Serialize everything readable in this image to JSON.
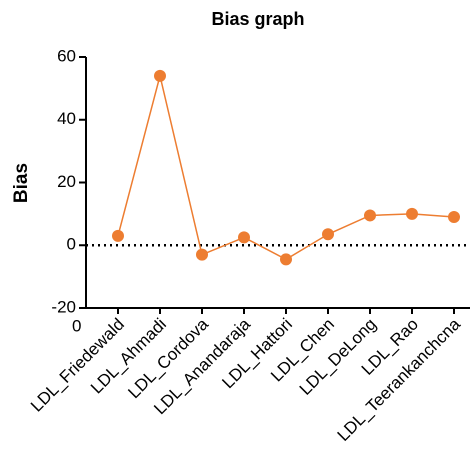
{
  "chart_data": {
    "type": "line",
    "title": "Bias graph",
    "y_label": "Bias",
    "categories": [
      "0",
      "LDL_Friedewald",
      "LDL_Ahmadi",
      "LDL_Cordova",
      "LDL_Anandaraja",
      "LDL_Hattori",
      "LDL_Chen",
      "LDL_DeLong",
      "LDL_Rao",
      "LDL_Teerankanchcna"
    ],
    "series": [
      {
        "name": "Bias",
        "color": "#ed7d31",
        "values": [
          null,
          3,
          54,
          -3,
          2.5,
          -4.5,
          3.5,
          9.5,
          10,
          9
        ]
      }
    ],
    "ylim": [
      -20,
      60
    ],
    "yticks": [
      -20,
      0,
      20,
      40,
      60
    ],
    "hline": 0,
    "grid": false
  }
}
